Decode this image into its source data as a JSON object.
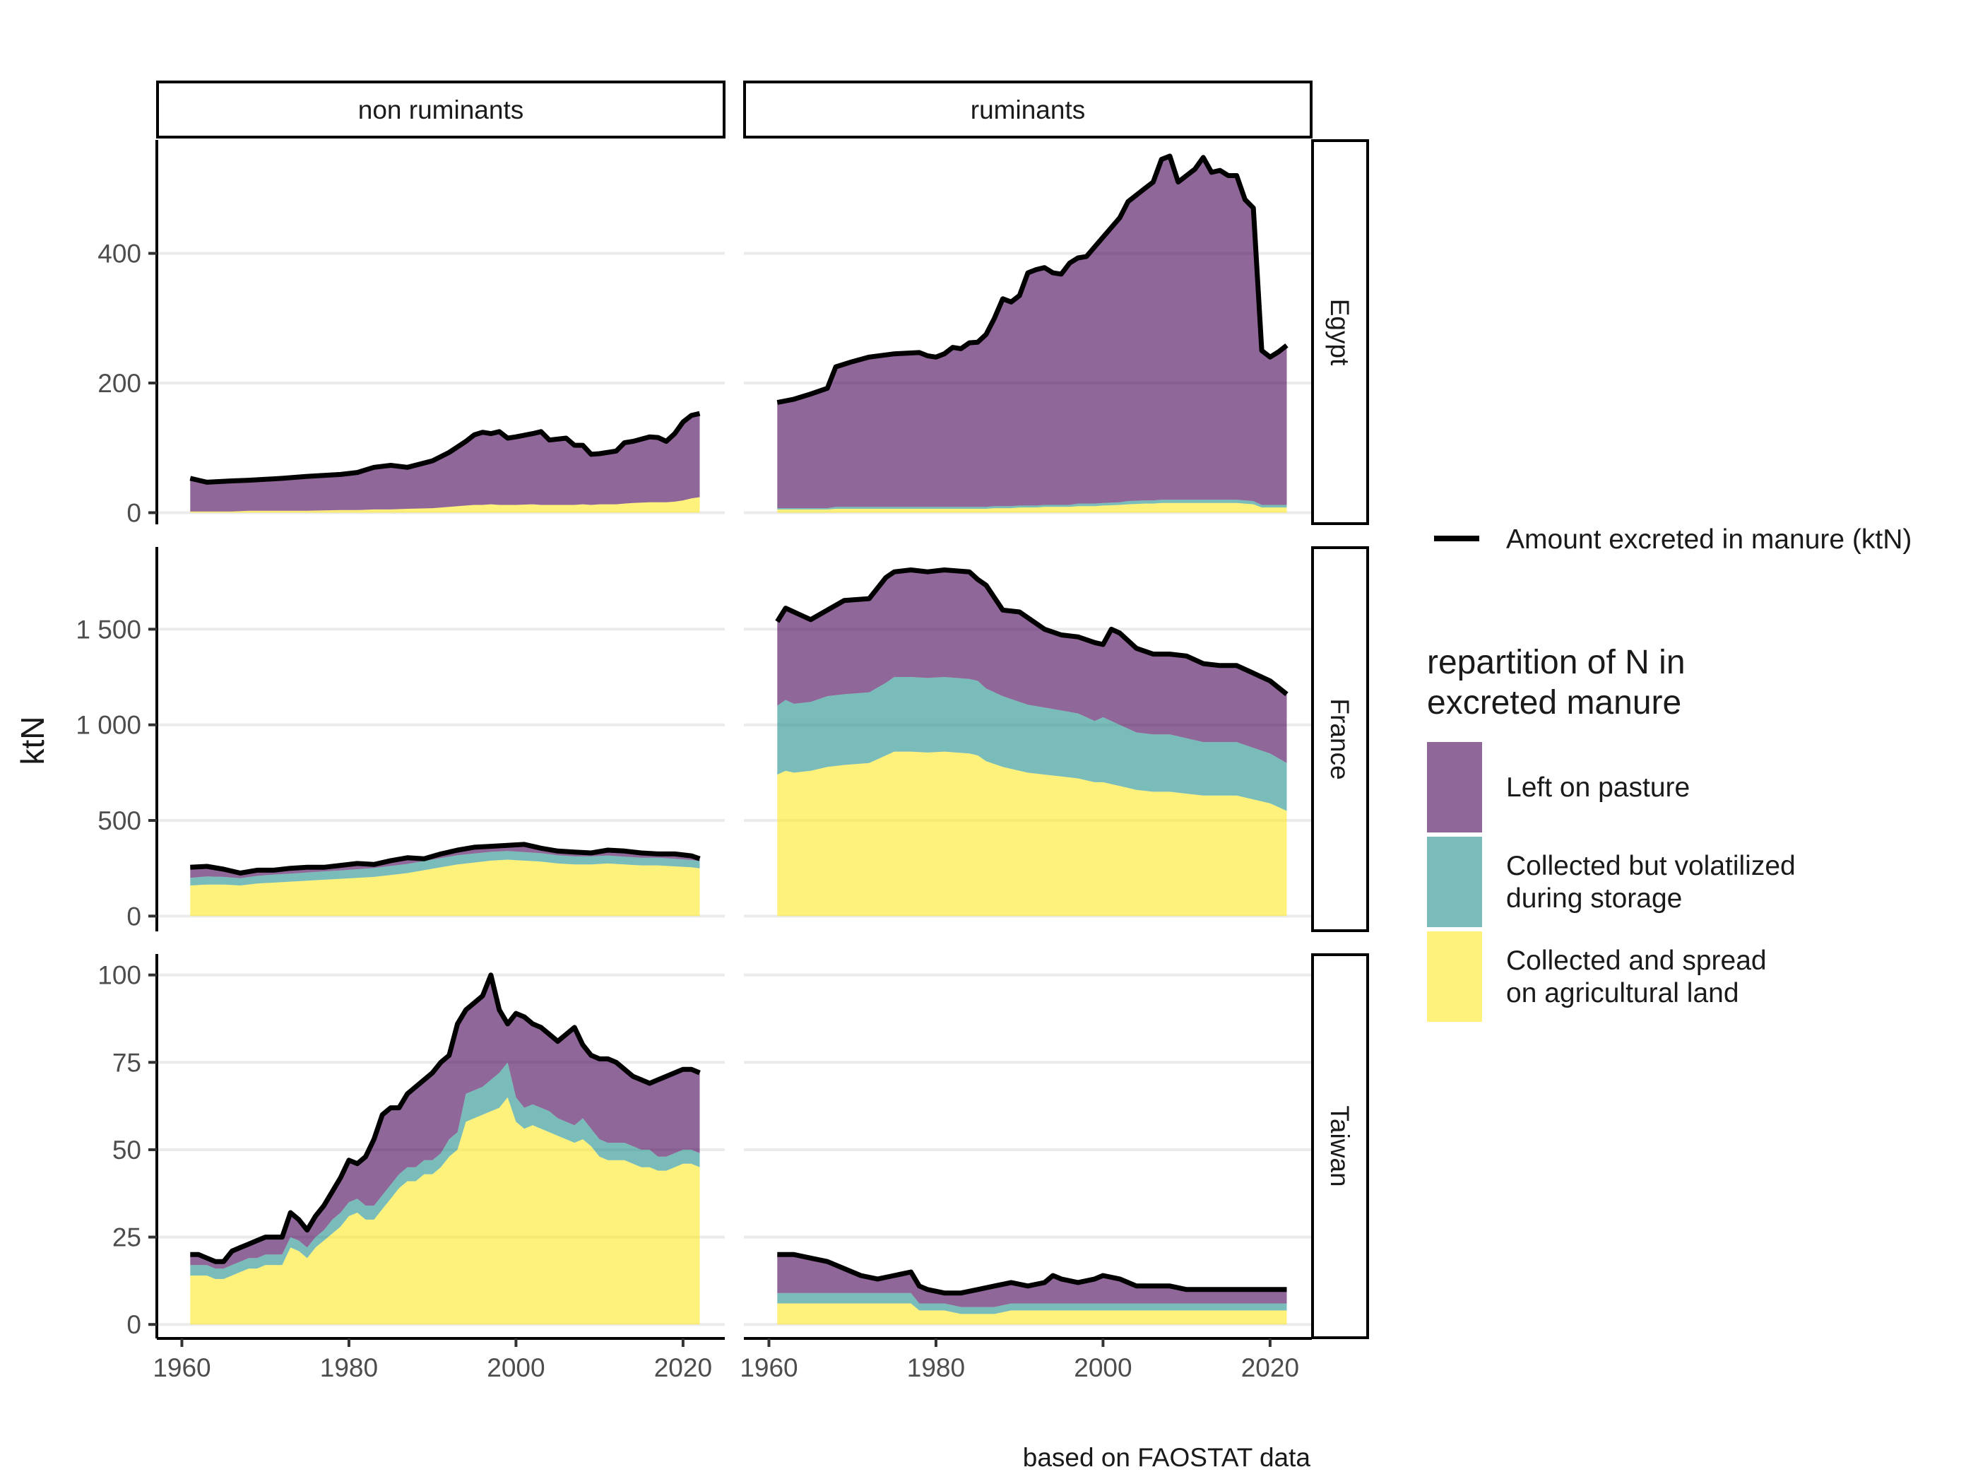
{
  "chart_data": {
    "type": "area",
    "ylabel": "ktN",
    "caption": "based on FAOSTAT data",
    "x_ticks": [
      1960,
      1980,
      2000,
      2020
    ],
    "x_tick_labels": [
      "1960",
      "1980",
      "2000",
      "2020"
    ],
    "xlim": [
      1957,
      2025
    ],
    "columns": [
      "non ruminants",
      "ruminants"
    ],
    "rows": [
      "Egypt",
      "France",
      "Taiwan"
    ],
    "line_legend_label": "Amount excreted in manure (ktN)",
    "legend_title": [
      "repartition of N in",
      "excreted manure"
    ],
    "layers": [
      {
        "key": "spread",
        "label": [
          "Collected and spread",
          "on agricultural land"
        ],
        "color": "#FDE725"
      },
      {
        "key": "volatilized",
        "label": [
          "Collected but volatilized",
          "during storage"
        ],
        "color": "#21908C"
      },
      {
        "key": "pasture",
        "label": [
          "Left on pasture"
        ],
        "color": "#440154"
      }
    ],
    "legend_order": [
      "pasture",
      "volatilized",
      "spread"
    ],
    "panel_rows": [
      {
        "name": "Egypt",
        "ylim": [
          -18,
          575
        ],
        "y_ticks": [
          0,
          200,
          400
        ],
        "y_tick_labels": [
          "0",
          "200",
          "400"
        ]
      },
      {
        "name": "France",
        "ylim": [
          -80,
          1930
        ],
        "y_ticks": [
          0,
          500,
          1000,
          1500
        ],
        "y_tick_labels": [
          "0",
          "500",
          "1 000",
          "1 500"
        ]
      },
      {
        "name": "Taiwan",
        "ylim": [
          -4,
          106
        ],
        "y_ticks": [
          0,
          25,
          50,
          75,
          100
        ],
        "y_tick_labels": [
          "0",
          "25",
          "50",
          "75",
          "100"
        ]
      }
    ],
    "panels": [
      {
        "row": "Egypt",
        "col": "non ruminants",
        "x": [
          1961,
          1963,
          1966,
          1968,
          1972,
          1975,
          1979,
          1981,
          1983,
          1985,
          1987,
          1990,
          1992,
          1994,
          1995,
          1996,
          1997,
          1998,
          1999,
          2000,
          2002,
          2003,
          2004,
          2006,
          2007,
          2008,
          2009,
          2010,
          2012,
          2013,
          2014,
          2016,
          2017,
          2018,
          2019,
          2020,
          2021,
          2022
        ],
        "spread": [
          2,
          2,
          2,
          3,
          3,
          3,
          4,
          4,
          5,
          5,
          6,
          7,
          9,
          11,
          12,
          12,
          13,
          12,
          12,
          12,
          13,
          12,
          12,
          12,
          12,
          13,
          12,
          13,
          13,
          14,
          15,
          16,
          16,
          16,
          17,
          19,
          22,
          24
        ],
        "volatilized": [
          0,
          0,
          0,
          0,
          0,
          0,
          0,
          0,
          0,
          0,
          0,
          0,
          0,
          0,
          0,
          0,
          0,
          0,
          0,
          0,
          0,
          0,
          0,
          0,
          0,
          0,
          0,
          0,
          0,
          0,
          0,
          0,
          0,
          0,
          0,
          0,
          0,
          0
        ],
        "total": [
          53,
          47,
          49,
          50,
          53,
          56,
          59,
          62,
          70,
          73,
          70,
          80,
          93,
          110,
          120,
          124,
          122,
          125,
          115,
          117,
          122,
          125,
          112,
          115,
          104,
          104,
          90,
          91,
          95,
          108,
          110,
          117,
          116,
          110,
          122,
          140,
          150,
          153
        ]
      },
      {
        "row": "Egypt",
        "col": "ruminants",
        "x": [
          1961,
          1963,
          1965,
          1967,
          1968,
          1970,
          1972,
          1975,
          1978,
          1979,
          1980,
          1981,
          1982,
          1983,
          1984,
          1985,
          1986,
          1987,
          1988,
          1989,
          1990,
          1991,
          1992,
          1993,
          1994,
          1995,
          1996,
          1997,
          1998,
          1999,
          2000,
          2002,
          2003,
          2005,
          2006,
          2007,
          2008,
          2009,
          2010,
          2011,
          2012,
          2013,
          2014,
          2015,
          2016,
          2017,
          2018,
          2019,
          2020,
          2021,
          2022
        ],
        "spread": [
          5,
          5,
          5,
          5,
          6,
          6,
          6,
          6,
          6,
          6,
          6,
          6,
          6,
          6,
          6,
          6,
          6,
          7,
          7,
          7,
          8,
          8,
          8,
          9,
          9,
          9,
          9,
          10,
          10,
          10,
          11,
          12,
          13,
          14,
          14,
          15,
          15,
          15,
          15,
          15,
          15,
          15,
          15,
          15,
          15,
          14,
          13,
          8,
          8,
          8,
          8
        ],
        "volatilized": [
          2,
          2,
          2,
          2,
          3,
          3,
          3,
          3,
          3,
          3,
          3,
          3,
          3,
          3,
          3,
          3,
          3,
          3,
          3,
          3,
          3,
          3,
          3,
          3,
          3,
          3,
          3,
          4,
          4,
          4,
          4,
          4,
          5,
          5,
          5,
          5,
          5,
          5,
          5,
          5,
          5,
          5,
          5,
          5,
          5,
          5,
          5,
          4,
          4,
          4,
          4
        ],
        "total": [
          170,
          175,
          183,
          192,
          225,
          233,
          240,
          245,
          247,
          242,
          240,
          245,
          255,
          253,
          262,
          263,
          275,
          300,
          330,
          325,
          335,
          370,
          375,
          378,
          370,
          368,
          385,
          393,
          395,
          410,
          425,
          455,
          480,
          500,
          510,
          545,
          550,
          510,
          520,
          530,
          548,
          525,
          528,
          520,
          520,
          483,
          470,
          250,
          240,
          248,
          258
        ]
      },
      {
        "row": "France",
        "col": "non ruminants",
        "x": [
          1961,
          1963,
          1965,
          1967,
          1969,
          1971,
          1973,
          1975,
          1977,
          1979,
          1981,
          1983,
          1985,
          1987,
          1989,
          1991,
          1993,
          1995,
          1997,
          1999,
          2001,
          2003,
          2005,
          2007,
          2009,
          2011,
          2013,
          2015,
          2017,
          2019,
          2021,
          2022
        ],
        "spread": [
          160,
          165,
          165,
          160,
          170,
          175,
          180,
          185,
          190,
          195,
          200,
          205,
          215,
          225,
          240,
          255,
          270,
          280,
          290,
          295,
          290,
          285,
          275,
          270,
          270,
          275,
          270,
          265,
          265,
          260,
          255,
          250
        ],
        "volatilized": [
          40,
          42,
          40,
          38,
          40,
          42,
          42,
          43,
          44,
          44,
          45,
          46,
          47,
          48,
          48,
          48,
          48,
          47,
          46,
          45,
          45,
          44,
          43,
          42,
          42,
          42,
          41,
          40,
          40,
          40,
          38,
          38
        ],
        "total": [
          255,
          260,
          245,
          225,
          240,
          240,
          250,
          255,
          255,
          265,
          275,
          270,
          290,
          305,
          300,
          325,
          345,
          360,
          365,
          370,
          375,
          355,
          340,
          335,
          330,
          345,
          340,
          330,
          325,
          325,
          315,
          300
        ]
      },
      {
        "row": "France",
        "col": "ruminants",
        "x": [
          1961,
          1962,
          1963,
          1965,
          1967,
          1969,
          1972,
          1974,
          1975,
          1977,
          1979,
          1981,
          1984,
          1985,
          1986,
          1988,
          1990,
          1991,
          1993,
          1995,
          1997,
          1999,
          2000,
          2001,
          2002,
          2004,
          2006,
          2008,
          2010,
          2012,
          2014,
          2016,
          2018,
          2020,
          2022
        ],
        "spread": [
          740,
          760,
          750,
          760,
          780,
          790,
          800,
          840,
          860,
          860,
          855,
          860,
          850,
          840,
          810,
          780,
          760,
          750,
          740,
          730,
          720,
          700,
          700,
          690,
          680,
          660,
          650,
          650,
          640,
          630,
          630,
          630,
          610,
          590,
          550
        ],
        "volatilized": [
          360,
          370,
          360,
          360,
          370,
          370,
          370,
          380,
          390,
          390,
          390,
          390,
          390,
          390,
          380,
          370,
          360,
          355,
          350,
          345,
          340,
          320,
          340,
          330,
          320,
          300,
          300,
          300,
          290,
          280,
          280,
          280,
          270,
          260,
          250
        ],
        "total": [
          1540,
          1610,
          1590,
          1550,
          1600,
          1650,
          1660,
          1770,
          1800,
          1810,
          1800,
          1810,
          1800,
          1760,
          1730,
          1600,
          1590,
          1560,
          1500,
          1470,
          1460,
          1430,
          1420,
          1500,
          1480,
          1400,
          1370,
          1370,
          1360,
          1320,
          1310,
          1310,
          1270,
          1230,
          1160
        ]
      },
      {
        "row": "Taiwan",
        "col": "non ruminants",
        "x": [
          1961,
          1962,
          1963,
          1964,
          1965,
          1966,
          1967,
          1968,
          1969,
          1970,
          1971,
          1972,
          1973,
          1974,
          1975,
          1976,
          1977,
          1978,
          1979,
          1980,
          1981,
          1982,
          1983,
          1984,
          1985,
          1986,
          1987,
          1988,
          1989,
          1990,
          1991,
          1992,
          1993,
          1994,
          1995,
          1996,
          1997,
          1998,
          1999,
          2000,
          2001,
          2002,
          2003,
          2004,
          2005,
          2006,
          2007,
          2008,
          2009,
          2010,
          2011,
          2012,
          2013,
          2014,
          2015,
          2016,
          2017,
          2018,
          2019,
          2020,
          2021,
          2022
        ],
        "spread": [
          14,
          14,
          14,
          13,
          13,
          14,
          15,
          16,
          16,
          17,
          17,
          17,
          22,
          21,
          19,
          22,
          24,
          26,
          28,
          31,
          32,
          30,
          30,
          33,
          36,
          39,
          41,
          41,
          43,
          43,
          45,
          48,
          50,
          58,
          59,
          60,
          61,
          62,
          65,
          58,
          56,
          57,
          56,
          55,
          54,
          53,
          52,
          53,
          51,
          48,
          47,
          47,
          47,
          46,
          45,
          45,
          44,
          44,
          45,
          46,
          46,
          45
        ],
        "volatilized": [
          3,
          3,
          3,
          3,
          3,
          3,
          3,
          3,
          3,
          3,
          3,
          3,
          3,
          3,
          3,
          3,
          3,
          4,
          4,
          4,
          4,
          4,
          4,
          4,
          4,
          4,
          4,
          4,
          4,
          4,
          4,
          5,
          5,
          8,
          8,
          8,
          9,
          10,
          10,
          7,
          6,
          6,
          6,
          6,
          5,
          5,
          5,
          6,
          5,
          5,
          5,
          5,
          5,
          5,
          5,
          5,
          4,
          4,
          4,
          4,
          4,
          4
        ],
        "total": [
          20,
          20,
          19,
          18,
          18,
          21,
          22,
          23,
          24,
          25,
          25,
          25,
          32,
          30,
          27,
          31,
          34,
          38,
          42,
          47,
          46,
          48,
          53,
          60,
          62,
          62,
          66,
          68,
          70,
          72,
          75,
          77,
          86,
          90,
          92,
          94,
          100,
          90,
          86,
          89,
          88,
          86,
          85,
          83,
          81,
          83,
          85,
          80,
          77,
          76,
          76,
          75,
          73,
          71,
          70,
          69,
          70,
          71,
          72,
          73,
          73,
          72
        ]
      },
      {
        "row": "Taiwan",
        "col": "ruminants",
        "x": [
          1961,
          1963,
          1965,
          1967,
          1969,
          1971,
          1973,
          1975,
          1977,
          1978,
          1979,
          1981,
          1983,
          1985,
          1987,
          1989,
          1991,
          1993,
          1994,
          1995,
          1997,
          1999,
          2000,
          2002,
          2004,
          2006,
          2008,
          2010,
          2012,
          2014,
          2016,
          2018,
          2020,
          2022
        ],
        "spread": [
          6,
          6,
          6,
          6,
          6,
          6,
          6,
          6,
          6,
          4,
          4,
          4,
          3,
          3,
          3,
          4,
          4,
          4,
          4,
          4,
          4,
          4,
          4,
          4,
          4,
          4,
          4,
          4,
          4,
          4,
          4,
          4,
          4,
          4
        ],
        "volatilized": [
          3,
          3,
          3,
          3,
          3,
          3,
          3,
          3,
          3,
          2,
          2,
          2,
          2,
          2,
          2,
          2,
          2,
          2,
          2,
          2,
          2,
          2,
          2,
          2,
          2,
          2,
          2,
          2,
          2,
          2,
          2,
          2,
          2,
          2
        ],
        "total": [
          20,
          20,
          19,
          18,
          16,
          14,
          13,
          14,
          15,
          11,
          10,
          9,
          9,
          10,
          11,
          12,
          11,
          12,
          14,
          13,
          12,
          13,
          14,
          13,
          11,
          11,
          11,
          10,
          10,
          10,
          10,
          10,
          10,
          10
        ]
      }
    ]
  }
}
